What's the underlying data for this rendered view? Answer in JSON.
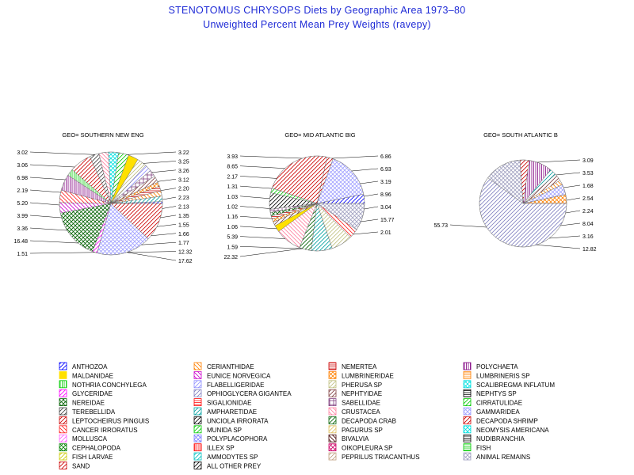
{
  "title": "STENOTOMUS CHRYSOPS Diets by Geographic Area 1973–80",
  "subtitle": "Unweighted Percent Mean Prey Weights (ravepy)",
  "chart_data": [
    {
      "type": "pie",
      "title": "GEO= SOUTHERN NEW ENG",
      "slices": [
        {
          "category": "ANTHOZOA",
          "value": 0.6
        },
        {
          "category": "AMPHARETIDAE",
          "value": 1.77
        },
        {
          "category": "CERIANTHIDAE",
          "value": 1.66
        },
        {
          "category": "NEMERTEA",
          "value": 1.55
        },
        {
          "category": "LUMBRINERIDAE",
          "value": 1.35
        },
        {
          "category": "NEPHTYIDAE",
          "value": 2.13
        },
        {
          "category": "SABELLIDAE",
          "value": 2.23
        },
        {
          "category": "FLABELLIGERIDAE",
          "value": 2.2
        },
        {
          "category": "PHERUSA SP",
          "value": 3.12
        },
        {
          "category": "MALDANIDAE",
          "value": 3.22
        },
        {
          "category": "CIRRATULIDAE",
          "value": 3.25
        },
        {
          "category": "SCALIBREGMA INFLATUM",
          "value": 3.26
        },
        {
          "category": "CRUSTACEA",
          "value": 3.02
        },
        {
          "category": "TEREBELLIDA",
          "value": 3.06
        },
        {
          "category": "LEPTOCHEIRUS PINGUIS",
          "value": 6.98
        },
        {
          "category": "NOTHRIA CONCHYLEGA",
          "value": 2.19
        },
        {
          "category": "POLYCHAETA",
          "value": 5.2
        },
        {
          "category": "CANCER IRRORATUS",
          "value": 3.99
        },
        {
          "category": "EUNICE NORVEGICA",
          "value": 3.36
        },
        {
          "category": "NEREIDAE",
          "value": 16.48
        },
        {
          "category": "GLYCERIDAE",
          "value": 1.51
        },
        {
          "category": "GAMMARIDEA",
          "value": 17.62
        },
        {
          "category": "DECAPODA SHRIMP",
          "value": 12.32
        }
      ],
      "value_labels_left": [
        "3.02",
        "3.06",
        "6.98",
        "2.19",
        "5.20",
        "3.99",
        "3.36",
        "16.48",
        "1.51"
      ],
      "value_labels_right": [
        "3.22",
        "3.25",
        "3.26",
        "3.12",
        "2.20",
        "2.23",
        "2.13",
        "1.35",
        "1.55",
        "1.66",
        "1.77",
        "12.32",
        "17.62"
      ]
    },
    {
      "type": "pie",
      "title": "GEO= MID ATLANTIC BIG",
      "slices": [
        {
          "category": "ANTHOZOA",
          "value": 3.04
        },
        {
          "category": "GAMMARIDEA",
          "value": 15.77
        },
        {
          "category": "SAND",
          "value": 2.01
        },
        {
          "category": "DECAPODA SHRIMP",
          "value": 22.32
        },
        {
          "category": "CIRRATULIDAE",
          "value": 1.59
        },
        {
          "category": "ALL OTHER PREY",
          "value": 5.39
        },
        {
          "category": "SABELLIDAE",
          "value": 1.06
        },
        {
          "category": "NEREIDAE",
          "value": 1.16
        },
        {
          "category": "NEMERTEA",
          "value": 1.02
        },
        {
          "category": "LUMBRINERIDAE",
          "value": 1.03
        },
        {
          "category": "NEPHTYIDAE",
          "value": 1.31
        },
        {
          "category": "MALDANIDAE",
          "value": 2.17
        },
        {
          "category": "CRUSTACEA",
          "value": 8.65
        },
        {
          "category": "DECAPODA CRAB",
          "value": 3.93
        },
        {
          "category": "AMPHARETIDAE",
          "value": 6.86
        },
        {
          "category": "PHERUSA SP",
          "value": 6.93
        },
        {
          "category": "CANCER IRRORATUS",
          "value": 3.19
        },
        {
          "category": "ANIMAL REMAINS",
          "value": 8.96
        }
      ],
      "value_labels_left": [
        "3.93",
        "8.65",
        "2.17",
        "1.31",
        "1.03",
        "1.02",
        "1.16",
        "1.06",
        "5.39",
        "1.59",
        "22.32"
      ],
      "value_labels_right": [
        "6.86",
        "6.93",
        "3.19",
        "8.96",
        "3.04",
        "15.77",
        "2.01"
      ]
    },
    {
      "type": "pie",
      "title": "GEO= SOUTH ATLANTIC B",
      "slices": [
        {
          "category": "LUMBRINERIDAE",
          "value": 3.09
        },
        {
          "category": "GAMMARIDEA",
          "value": 3.53
        },
        {
          "category": "CERIANTHIDAE",
          "value": 1.68
        },
        {
          "category": "NEPHTYIDAE",
          "value": 2.54
        },
        {
          "category": "AMPHARETIDAE",
          "value": 2.24
        },
        {
          "category": "POLYCHAETA",
          "value": 8.04
        },
        {
          "category": "LEPTOCHEIRUS PINGUIS",
          "value": 3.16
        },
        {
          "category": "ANIMAL REMAINS",
          "value": 12.82
        },
        {
          "category": "OPHIOGLYCERA GIGANTEA",
          "value": 55.73
        }
      ],
      "value_labels_left": [
        "55.73"
      ],
      "value_labels_right": [
        "3.09",
        "3.53",
        "1.68",
        "2.54",
        "2.24",
        "8.04",
        "3.16",
        "12.82"
      ]
    }
  ],
  "legend": {
    "columns": [
      [
        "ANTHOZOA",
        "MALDANIDAE",
        "NOTHRIA CONCHYLEGA",
        "GLYCERIDAE",
        "NEREIDAE",
        "TEREBELLIDA",
        "LEPTOCHEIRUS PINGUIS",
        "CANCER IRRORATUS",
        "MOLLUSCA",
        "CEPHALOPODA",
        "FISH LARVAE",
        "SAND"
      ],
      [
        "CERIANTHIDAE",
        "EUNICE NORVEGICA",
        "FLABELLIGERIDAE",
        "OPHIOGLYCERA GIGANTEA",
        "SIGALIONIDAE",
        "AMPHARETIDAE",
        "UNCIOLA IRRORATA",
        "MUNIDA SP",
        "POLYPLACOPHORA",
        "ILLEX SP",
        "AMMODYTES SP",
        "ALL OTHER PREY"
      ],
      [
        "NEMERTEA",
        "LUMBRINERIDAE",
        "PHERUSA SP",
        "NEPHTYIDAE",
        "SABELLIDAE",
        "CRUSTACEA",
        "DECAPODA CRAB",
        "PAGURUS SP",
        "BIVALVIA",
        "OIKOPLEURA SP",
        "PEPRILUS TRIACANTHUS"
      ],
      [
        "POLYCHAETA",
        "LUMBRINERIS SP",
        "SCALIBREGMA INFLATUM",
        "NEPHTYS SP",
        "CIRRATULIDAE",
        "GAMMARIDEA",
        "DECAPODA SHRIMP",
        "NEOMYSIS AMERICANA",
        "NUDIBRANCHIA",
        "FISH",
        "ANIMAL REMAINS"
      ]
    ],
    "styles": {
      "ANTHOZOA": {
        "color": "#0000ff",
        "pattern": "diag-right"
      },
      "MALDANIDAE": {
        "color": "#ffe000",
        "pattern": "solid"
      },
      "NOTHRIA CONCHYLEGA": {
        "color": "#00cc00",
        "pattern": "vertical"
      },
      "GLYCERIDAE": {
        "color": "#ff00ff",
        "pattern": "diag-right"
      },
      "NEREIDAE": {
        "color": "#006000",
        "pattern": "cross-diag"
      },
      "TEREBELLIDA": {
        "color": "#404040",
        "pattern": "diag-right"
      },
      "LEPTOCHEIRUS PINGUIS": {
        "color": "#cc0000",
        "pattern": "diag-right"
      },
      "CANCER IRRORATUS": {
        "color": "#ff2020",
        "pattern": "diag-left"
      },
      "MOLLUSCA": {
        "color": "#ff60ff",
        "pattern": "diag-right"
      },
      "CEPHALOPODA": {
        "color": "#008000",
        "pattern": "cross-diag"
      },
      "FISH LARVAE": {
        "color": "#cccc00",
        "pattern": "diag-right"
      },
      "SAND": {
        "color": "#cc0000",
        "pattern": "diag-right"
      },
      "CERIANTHIDAE": {
        "color": "#ff8000",
        "pattern": "diag-left"
      },
      "EUNICE NORVEGICA": {
        "color": "#cc00cc",
        "pattern": "diag-left"
      },
      "FLABELLIGERIDAE": {
        "color": "#9090ff",
        "pattern": "diag-right"
      },
      "OPHIOGLYCERA GIGANTEA": {
        "color": "#8080c0",
        "pattern": "diag-right"
      },
      "SIGALIONIDAE": {
        "color": "#ff0000",
        "pattern": "horizontal"
      },
      "AMPHARETIDAE": {
        "color": "#00a0a0",
        "pattern": "diag-right"
      },
      "UNCIOLA IRRORATA": {
        "color": "#000000",
        "pattern": "diag-right"
      },
      "MUNIDA SP": {
        "color": "#00cc00",
        "pattern": "diag-right"
      },
      "POLYPLACOPHORA": {
        "color": "#8080ff",
        "pattern": "cross-diag"
      },
      "ILLEX SP": {
        "color": "#ff0000",
        "pattern": "vertical"
      },
      "AMMODYTES SP": {
        "color": "#00c0c0",
        "pattern": "diag-right"
      },
      "ALL OTHER PREY": {
        "color": "#000000",
        "pattern": "diag-right"
      },
      "NEMERTEA": {
        "color": "#cc0000",
        "pattern": "horizontal"
      },
      "LUMBRINERIDAE": {
        "color": "#ff8000",
        "pattern": "cross-diag"
      },
      "PHERUSA SP": {
        "color": "#c0c080",
        "pattern": "diag-right"
      },
      "NEPHTYIDAE": {
        "color": "#804040",
        "pattern": "diag-right"
      },
      "SABELLIDAE": {
        "color": "#804080",
        "pattern": "grid"
      },
      "CRUSTACEA": {
        "color": "#ff80a0",
        "pattern": "diag-left"
      },
      "DECAPODA CRAB": {
        "color": "#006000",
        "pattern": "diag-right"
      },
      "PAGURUS SP": {
        "color": "#e0c060",
        "pattern": "diag-right"
      },
      "BIVALVIA": {
        "color": "#400000",
        "pattern": "diag-left"
      },
      "OIKOPLEURA SP": {
        "color": "#cc0066",
        "pattern": "cross-diag"
      },
      "PEPRILUS TRIACANTHUS": {
        "color": "#c0a080",
        "pattern": "diag-right"
      },
      "POLYCHAETA": {
        "color": "#800080",
        "pattern": "vertical"
      },
      "LUMBRINERIS SP": {
        "color": "#ff8000",
        "pattern": "horizontal"
      },
      "SCALIBREGMA INFLATUM": {
        "color": "#00e0e0",
        "pattern": "cross-diag"
      },
      "NEPHTYS SP": {
        "color": "#000000",
        "pattern": "horizontal"
      },
      "CIRRATULIDAE": {
        "color": "#00cc00",
        "pattern": "diag-right"
      },
      "GAMMARIDEA": {
        "color": "#a0a0ff",
        "pattern": "cross-diag"
      },
      "DECAPODA SHRIMP": {
        "color": "#cc0000",
        "pattern": "diag-right"
      },
      "NEOMYSIS AMERICANA": {
        "color": "#00e0e0",
        "pattern": "cross-diag"
      },
      "NUDIBRANCHIA": {
        "color": "#000000",
        "pattern": "horizontal"
      },
      "FISH": {
        "color": "#00cc00",
        "pattern": "horizontal"
      },
      "ANIMAL REMAINS": {
        "color": "#a0a0c0",
        "pattern": "cross-diag"
      }
    }
  }
}
